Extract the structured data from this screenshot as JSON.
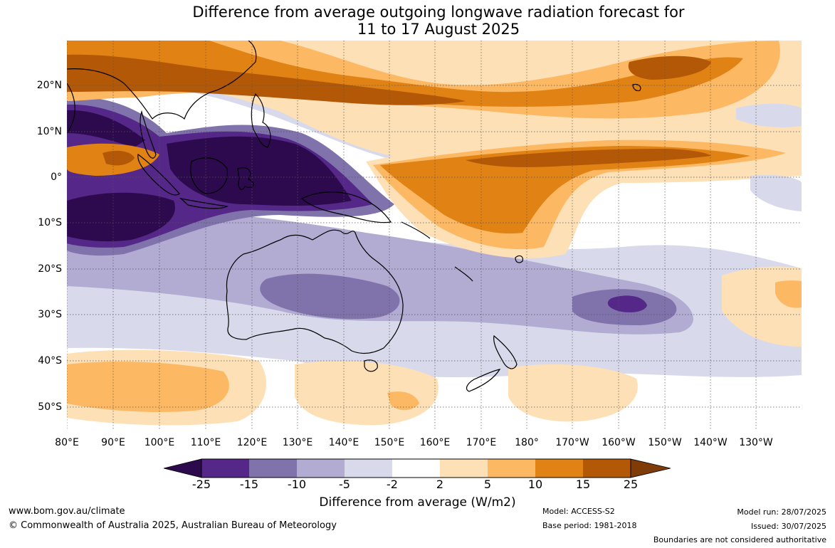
{
  "title": {
    "line1": "Difference from average outgoing longwave radiation forecast for",
    "line2": "11 to 17 August 2025"
  },
  "map": {
    "type": "anomaly-forecast-map",
    "lat_labels": [
      "20°N",
      "10°N",
      "0°",
      "10°S",
      "20°S",
      "30°S",
      "40°S",
      "50°S"
    ],
    "lon_labels": [
      "80°E",
      "90°E",
      "100°E",
      "110°E",
      "120°E",
      "130°E",
      "140°E",
      "150°E",
      "160°E",
      "170°E",
      "180°",
      "170°W",
      "160°W",
      "150°W",
      "140°W",
      "130°W"
    ],
    "colors": {
      "c_n25": "#2d0a4e",
      "c_n15": "#542788",
      "c_n10": "#8073ac",
      "c_n5": "#b2abd2",
      "c_n2": "#d8daeb",
      "c_0": "#ffffff",
      "c_2": "#fee0b6",
      "c_5": "#fdb863",
      "c_10": "#e08214",
      "c_15": "#b35806",
      "c_25": "#7f3b08",
      "coast": "#000000",
      "grid": "#555555"
    }
  },
  "colorbar": {
    "ticks": [
      "-25",
      "-15",
      "-10",
      "-5",
      "-2",
      "2",
      "5",
      "10",
      "15",
      "25"
    ],
    "label": "Difference from average (W/m2)"
  },
  "footer": {
    "url": "www.bom.gov.au/climate",
    "copyright": "© Commonwealth of Australia 2025, Australian Bureau of Meteorology",
    "model": "Model: ACCESS-S2",
    "base_period": "Base period: 1981-2018",
    "model_run": "Model run: 28/07/2025",
    "issued": "Issued: 30/07/2025",
    "boundaries": "Boundaries are not considered authoritative"
  }
}
